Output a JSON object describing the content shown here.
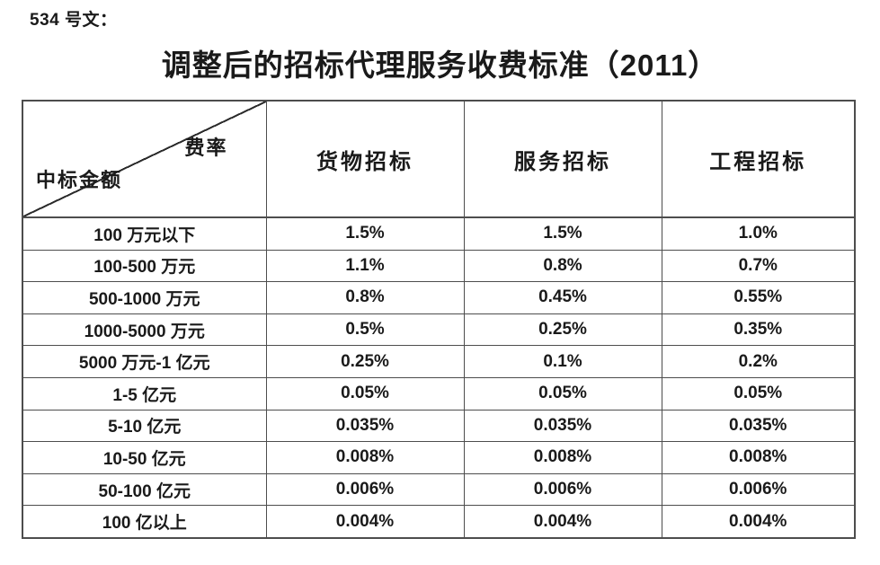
{
  "doc": {
    "ref_label": "534 号文：",
    "title": "调整后的招标代理服务收费标准（2011）"
  },
  "table": {
    "corner": {
      "top_right": "费率",
      "bottom_left": "中标金额"
    },
    "columns": [
      "货物招标",
      "服务招标",
      "工程招标"
    ],
    "rows": [
      {
        "label": "100 万元以下",
        "values": [
          "1.5%",
          "1.5%",
          "1.0%"
        ]
      },
      {
        "label": "100-500 万元",
        "values": [
          "1.1%",
          "0.8%",
          "0.7%"
        ]
      },
      {
        "label": "500-1000 万元",
        "values": [
          "0.8%",
          "0.45%",
          "0.55%"
        ]
      },
      {
        "label": "1000-5000 万元",
        "values": [
          "0.5%",
          "0.25%",
          "0.35%"
        ]
      },
      {
        "label": "5000 万元-1 亿元",
        "values": [
          "0.25%",
          "0.1%",
          "0.2%"
        ]
      },
      {
        "label": "1-5 亿元",
        "values": [
          "0.05%",
          "0.05%",
          "0.05%"
        ]
      },
      {
        "label": "5-10 亿元",
        "values": [
          "0.035%",
          "0.035%",
          "0.035%"
        ]
      },
      {
        "label": "10-50 亿元",
        "values": [
          "0.008%",
          "0.008%",
          "0.008%"
        ]
      },
      {
        "label": "50-100 亿元",
        "values": [
          "0.006%",
          "0.006%",
          "0.006%"
        ]
      },
      {
        "label": "100 亿以上",
        "values": [
          "0.004%",
          "0.004%",
          "0.004%"
        ]
      }
    ]
  },
  "colors": {
    "border": "#4d4d4d",
    "text": "#1a1a1a",
    "background": "#ffffff"
  }
}
